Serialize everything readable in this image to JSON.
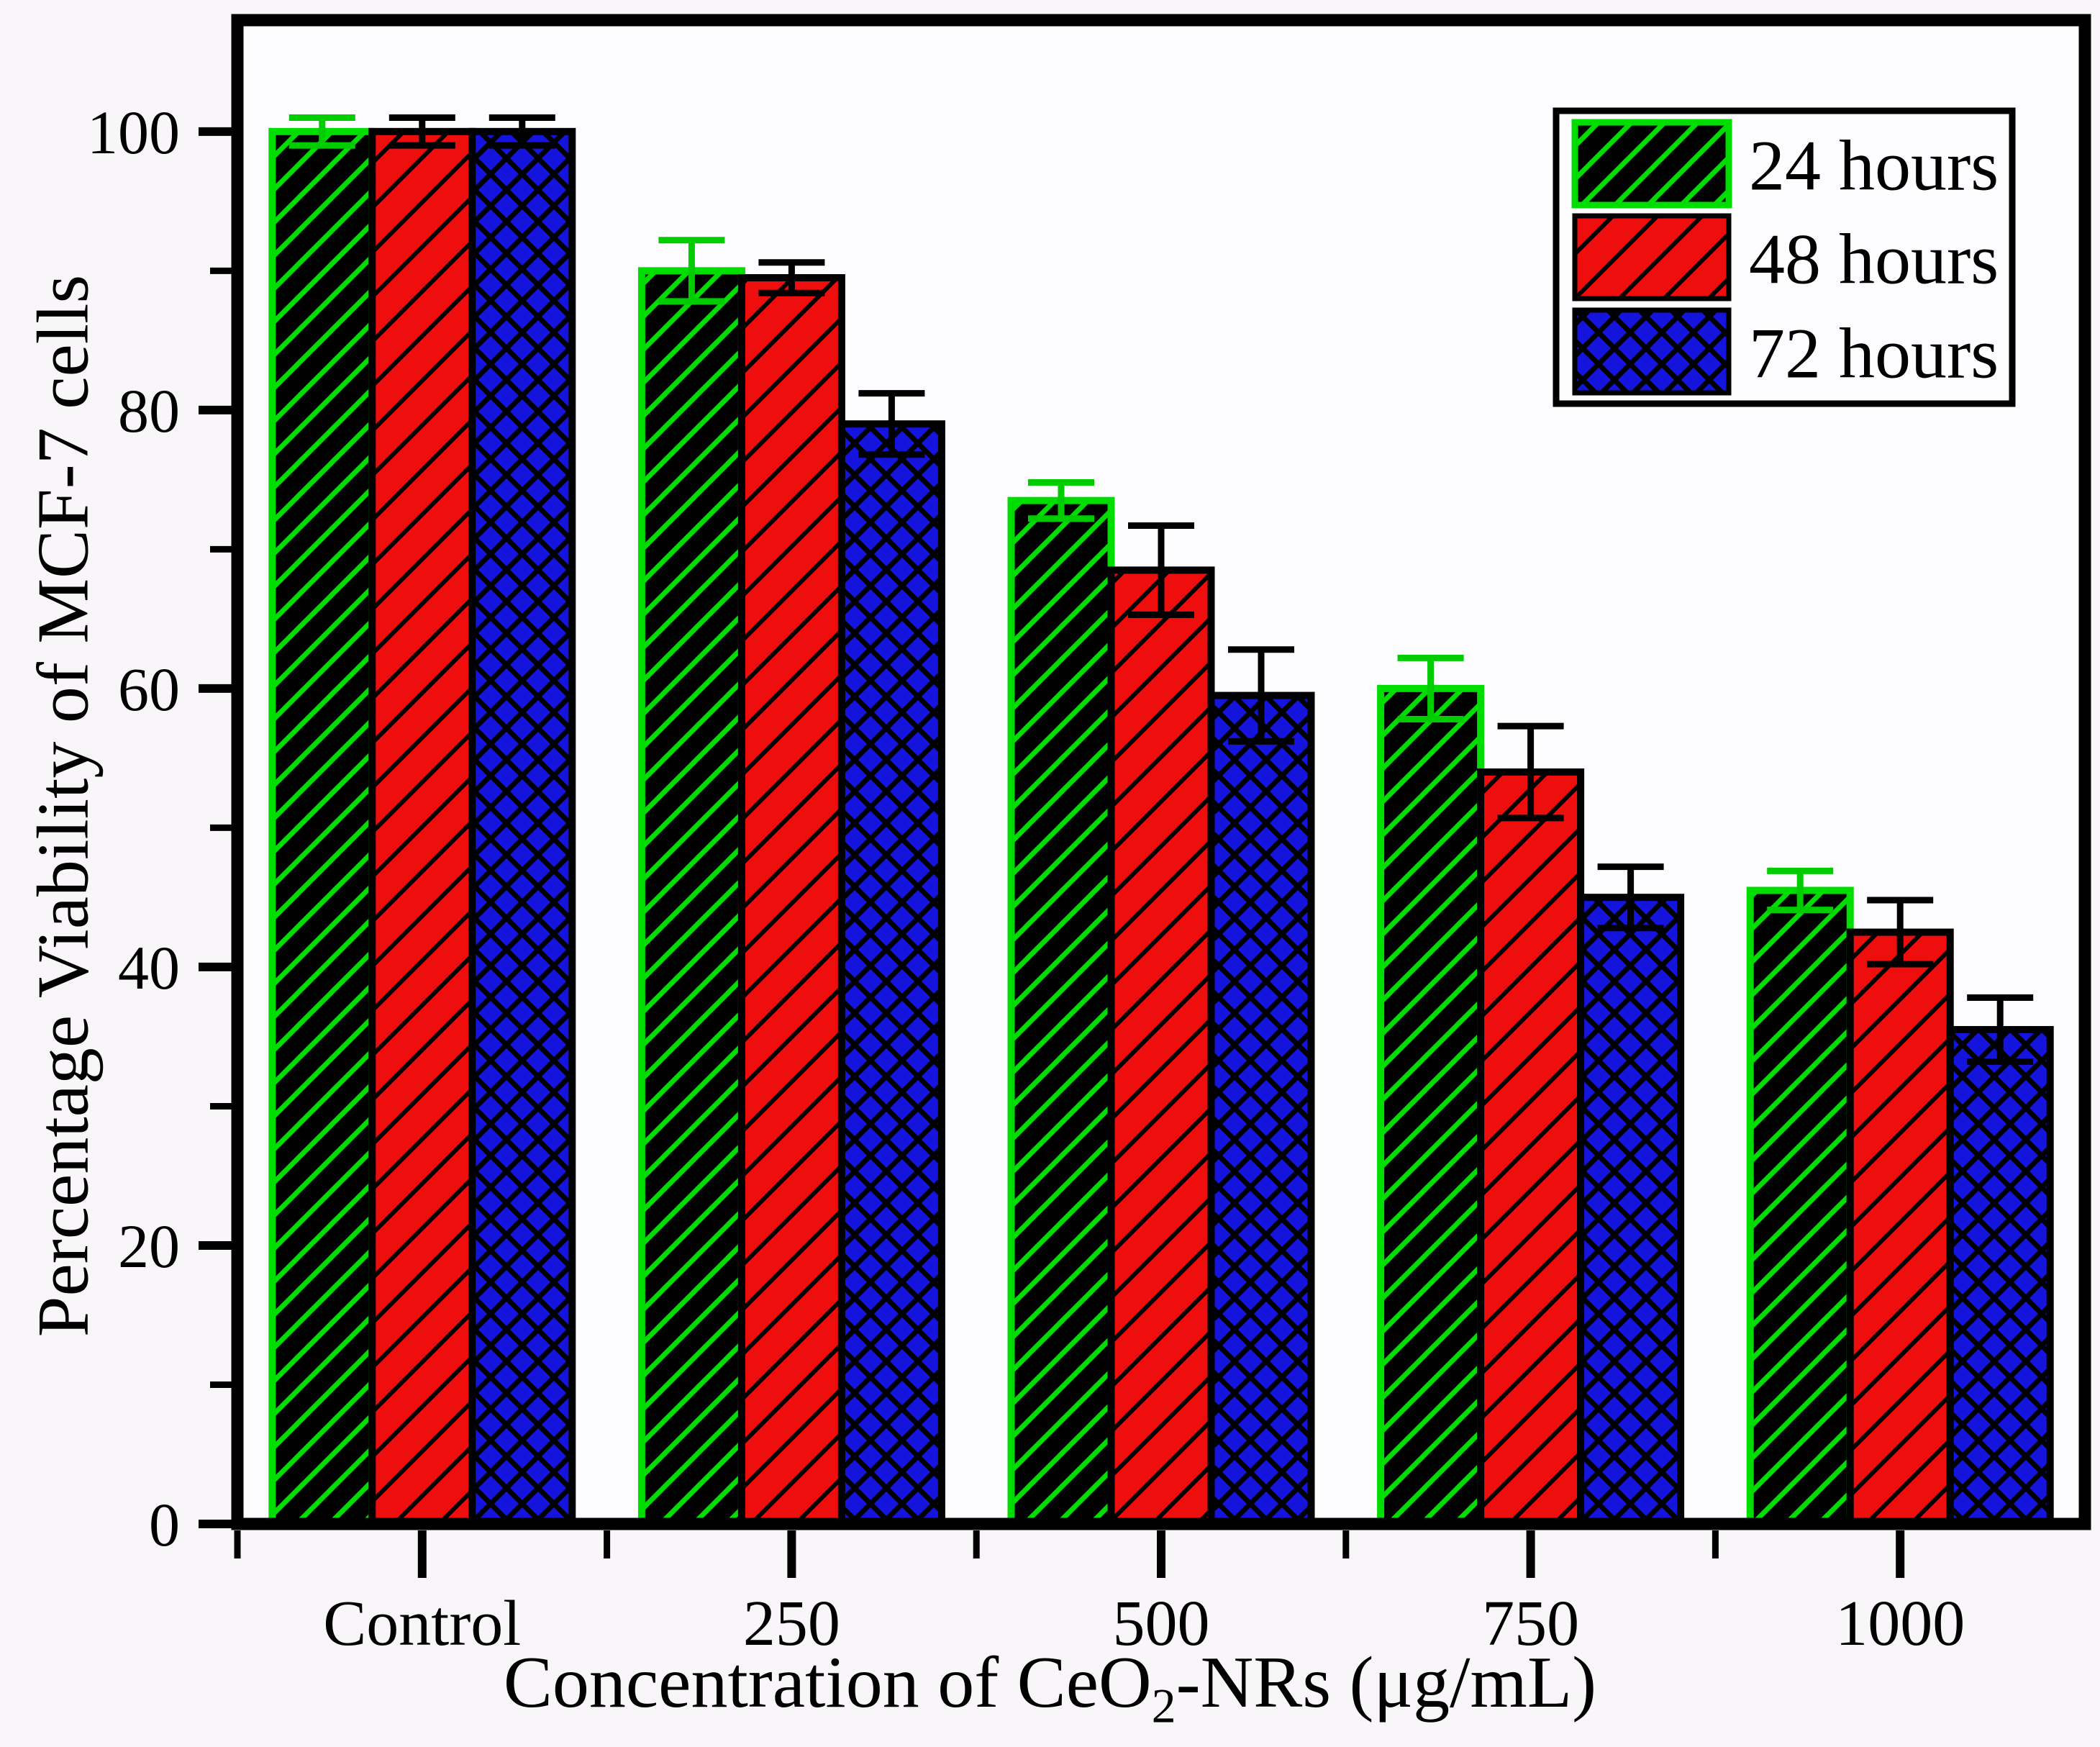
{
  "chart_data": {
    "type": "bar",
    "title": "",
    "categories": [
      "Control",
      "250",
      "500",
      "750",
      "1000"
    ],
    "series": [
      {
        "name": "24 hours",
        "values": [
          100,
          90,
          73.5,
          60,
          45.5
        ],
        "errors": [
          1.0,
          2.2,
          1.3,
          2.2,
          1.4
        ],
        "fill": "#000000",
        "hatch": "diagonal-up",
        "hatch_color": "#00dd00",
        "edge_color": "#00dd00",
        "error_color": "#00cc00"
      },
      {
        "name": "48 hours",
        "values": [
          100,
          89.5,
          68.5,
          54,
          42.5
        ],
        "errors": [
          1.0,
          1.1,
          3.2,
          3.3,
          2.3
        ],
        "fill": "#ee0e0e",
        "hatch": "diagonal-up",
        "hatch_color": "#000000",
        "edge_color": "#000000",
        "error_color": "#000000"
      },
      {
        "name": "72 hours",
        "values": [
          100,
          79,
          59.5,
          45,
          35.5
        ],
        "errors": [
          1.0,
          2.2,
          3.3,
          2.2,
          2.3
        ],
        "fill": "#1414dd",
        "hatch": "cross-diamond",
        "hatch_color": "#000000",
        "edge_color": "#000000",
        "error_color": "#000000"
      }
    ],
    "xlabel_prefix": "Concentration of CeO",
    "xlabel_sub": "2",
    "xlabel_suffix": "-NRs (μg/mL)",
    "ylabel": "Percentage Viability of MCF-7 cells",
    "y_ticks": [
      0,
      20,
      40,
      60,
      80,
      100
    ],
    "y_minor_ticks": [
      10,
      30,
      50,
      70,
      90
    ],
    "ylim": [
      0,
      108
    ],
    "grid": false,
    "legend_position": "top-right",
    "legend_labels": [
      "24 hours",
      "48 hours",
      "72 hours"
    ],
    "plot_background": "#fdfcfe",
    "frame_color": "#000000",
    "text_color": "#000000"
  }
}
